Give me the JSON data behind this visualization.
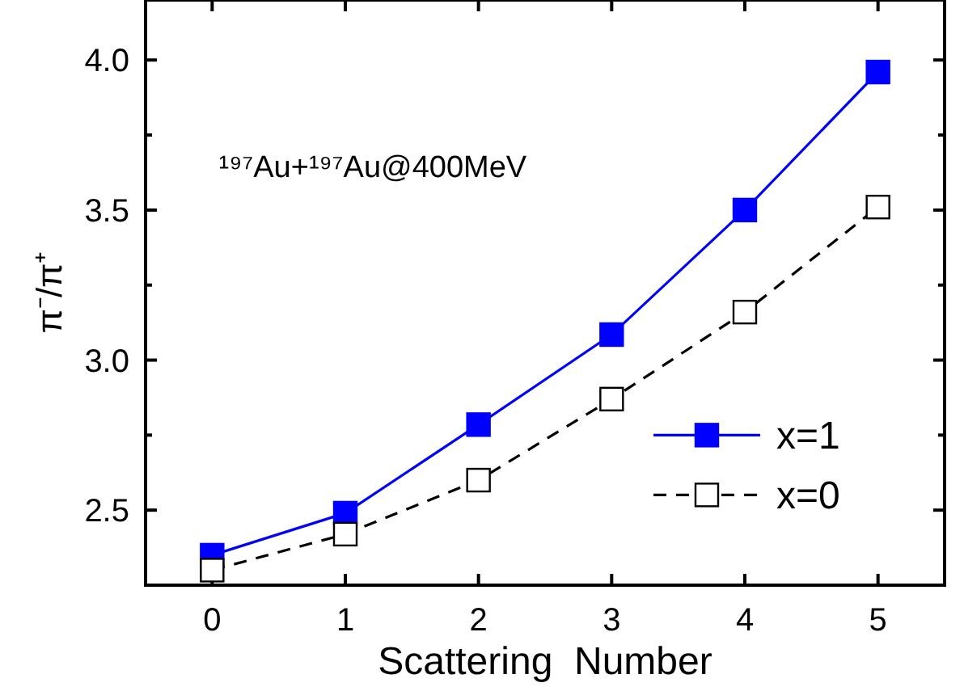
{
  "chart_data": {
    "type": "line",
    "xlabel": "Scattering  Number",
    "ylabel": "π⁻/π⁺",
    "x": [
      0,
      1,
      2,
      3,
      4,
      5
    ],
    "series": [
      {
        "name": "x=1",
        "color": "#0000ff",
        "values": [
          2.35,
          2.49,
          2.785,
          3.085,
          3.5,
          3.96
        ],
        "marker": "square",
        "line_style": "solid"
      },
      {
        "name": "x=0",
        "color": "#000000",
        "values": [
          2.3,
          2.42,
          2.6,
          2.87,
          3.16,
          3.51
        ],
        "marker": "square",
        "line_style": "dashed"
      }
    ],
    "xlim": [
      -0.5,
      5.5
    ],
    "ylim": [
      2.25,
      4.2
    ],
    "xticks": [
      0,
      1,
      2,
      3,
      4,
      5
    ],
    "yticks": [
      {
        "value": 2.5,
        "label": "2.5"
      },
      {
        "value": 2.75,
        "label": null
      },
      {
        "value": 3,
        "label": "3.0"
      },
      {
        "value": 3.25,
        "label": null
      },
      {
        "value": 3.5,
        "label": "3.5"
      },
      {
        "value": 3.75,
        "label": null
      },
      {
        "value": 4,
        "label": "4.0"
      }
    ],
    "annotations": [
      "¹⁹⁷Au+¹⁹⁷Au@400MeV"
    ],
    "legend": "right",
    "grid": false
  }
}
